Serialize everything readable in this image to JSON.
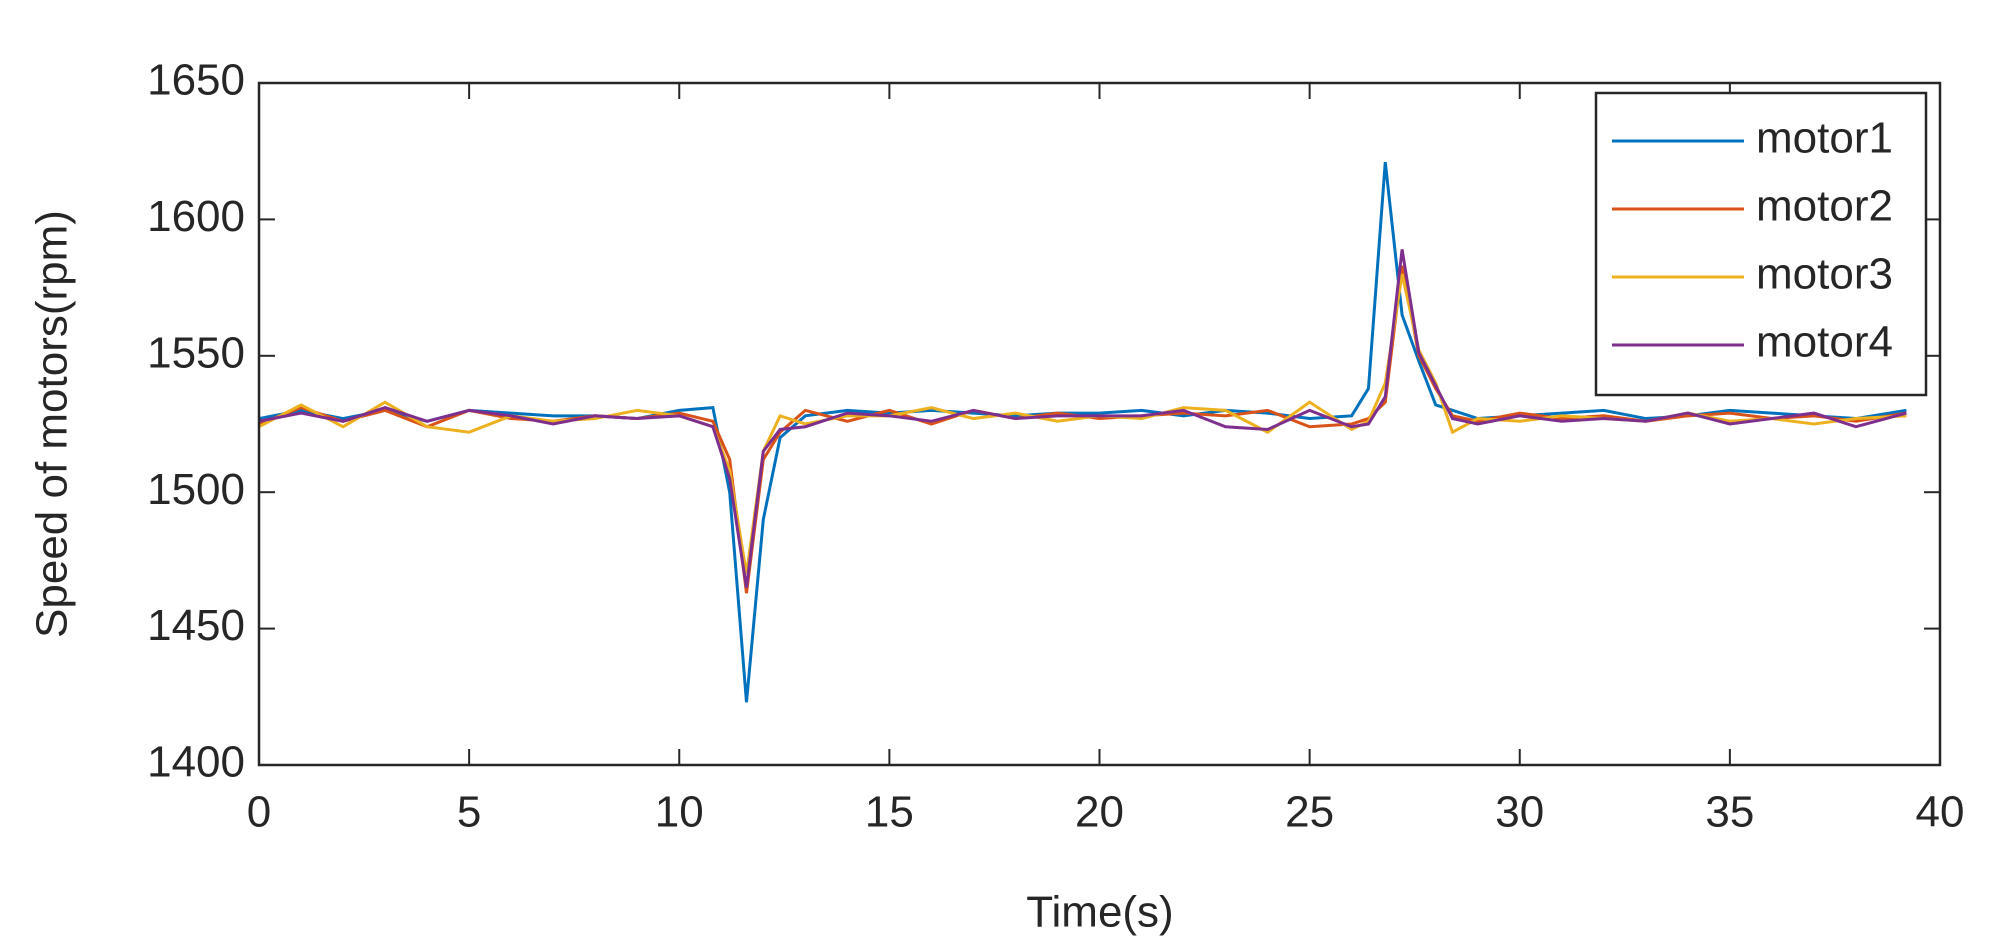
{
  "chart_data": {
    "type": "line",
    "x_label": "Time(s)",
    "y_label": "Speed of motors(rpm)",
    "x": [
      0,
      1,
      2,
      3,
      4,
      5,
      6,
      7,
      8,
      9,
      10,
      10.8,
      11.2,
      11.6,
      12,
      12.4,
      13,
      14,
      15,
      16,
      17,
      18,
      19,
      20,
      21,
      22,
      23,
      24,
      25,
      26,
      26.4,
      26.8,
      27.2,
      27.6,
      28,
      28.4,
      29,
      30,
      31,
      32,
      33,
      34,
      35,
      36,
      37,
      38,
      39.2
    ],
    "series": [
      {
        "name": "motor1",
        "color": "#0072bd",
        "values": [
          1527,
          1530,
          1527,
          1530,
          1526,
          1530,
          1529,
          1528,
          1528,
          1527,
          1530,
          1531,
          1500,
          1423,
          1490,
          1520,
          1528,
          1530,
          1529,
          1530,
          1529,
          1528,
          1529,
          1529,
          1530,
          1528,
          1530,
          1529,
          1527,
          1528,
          1538,
          1621,
          1565,
          1548,
          1532,
          1530,
          1527,
          1528,
          1529,
          1530,
          1527,
          1528,
          1530,
          1529,
          1528,
          1527,
          1530
        ]
      },
      {
        "name": "motor2",
        "color": "#d95319",
        "values": [
          1525,
          1531,
          1526,
          1530,
          1524,
          1530,
          1527,
          1526,
          1528,
          1527,
          1529,
          1526,
          1512,
          1463,
          1512,
          1522,
          1530,
          1526,
          1530,
          1525,
          1530,
          1527,
          1529,
          1527,
          1528,
          1529,
          1528,
          1530,
          1524,
          1525,
          1527,
          1533,
          1583,
          1550,
          1538,
          1528,
          1526,
          1529,
          1527,
          1528,
          1526,
          1528,
          1529,
          1527,
          1528,
          1526,
          1529
        ]
      },
      {
        "name": "motor3",
        "color": "#edb120",
        "values": [
          1524,
          1532,
          1524,
          1533,
          1524,
          1522,
          1528,
          1526,
          1527,
          1530,
          1528,
          1524,
          1508,
          1470,
          1515,
          1528,
          1525,
          1528,
          1528,
          1531,
          1527,
          1529,
          1526,
          1528,
          1527,
          1531,
          1530,
          1522,
          1533,
          1523,
          1526,
          1540,
          1580,
          1552,
          1540,
          1522,
          1527,
          1526,
          1528,
          1527,
          1526,
          1529,
          1526,
          1527,
          1525,
          1527,
          1528
        ]
      },
      {
        "name": "motor4",
        "color": "#7e2f8e",
        "values": [
          1526,
          1529,
          1526,
          1531,
          1526,
          1530,
          1528,
          1525,
          1528,
          1527,
          1528,
          1524,
          1505,
          1465,
          1515,
          1523,
          1524,
          1529,
          1528,
          1526,
          1530,
          1527,
          1528,
          1528,
          1528,
          1530,
          1524,
          1523,
          1530,
          1524,
          1525,
          1535,
          1589,
          1551,
          1539,
          1527,
          1525,
          1528,
          1526,
          1527,
          1526,
          1529,
          1525,
          1527,
          1529,
          1524,
          1529
        ]
      }
    ],
    "xlim": [
      0,
      40
    ],
    "xticks": [
      0,
      5,
      10,
      15,
      20,
      25,
      30,
      35,
      40
    ],
    "ylim": [
      1400,
      1650
    ],
    "yticks": [
      1400,
      1450,
      1500,
      1550,
      1600,
      1650
    ],
    "grid": false,
    "legend": "top-right"
  }
}
